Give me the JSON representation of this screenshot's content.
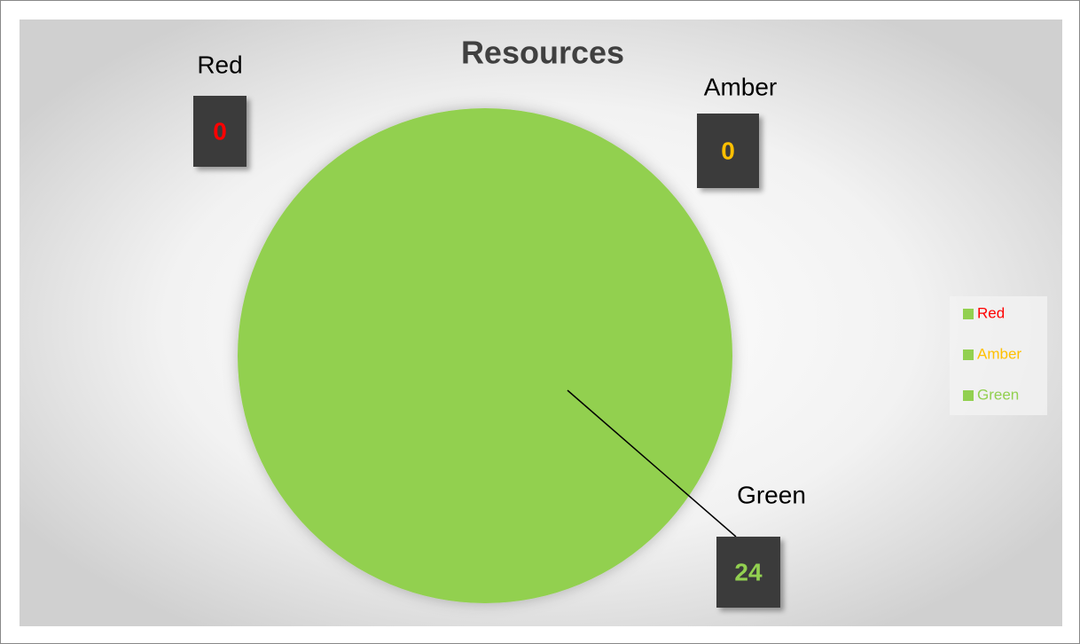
{
  "chart_data": {
    "type": "pie",
    "title": "Resources",
    "categories": [
      "Red",
      "Amber",
      "Green"
    ],
    "values": [
      0,
      0,
      24
    ],
    "color": "#92d050",
    "label_colors": [
      "#ff0000",
      "#ffc000",
      "#92d050"
    ],
    "legend": "right"
  }
}
